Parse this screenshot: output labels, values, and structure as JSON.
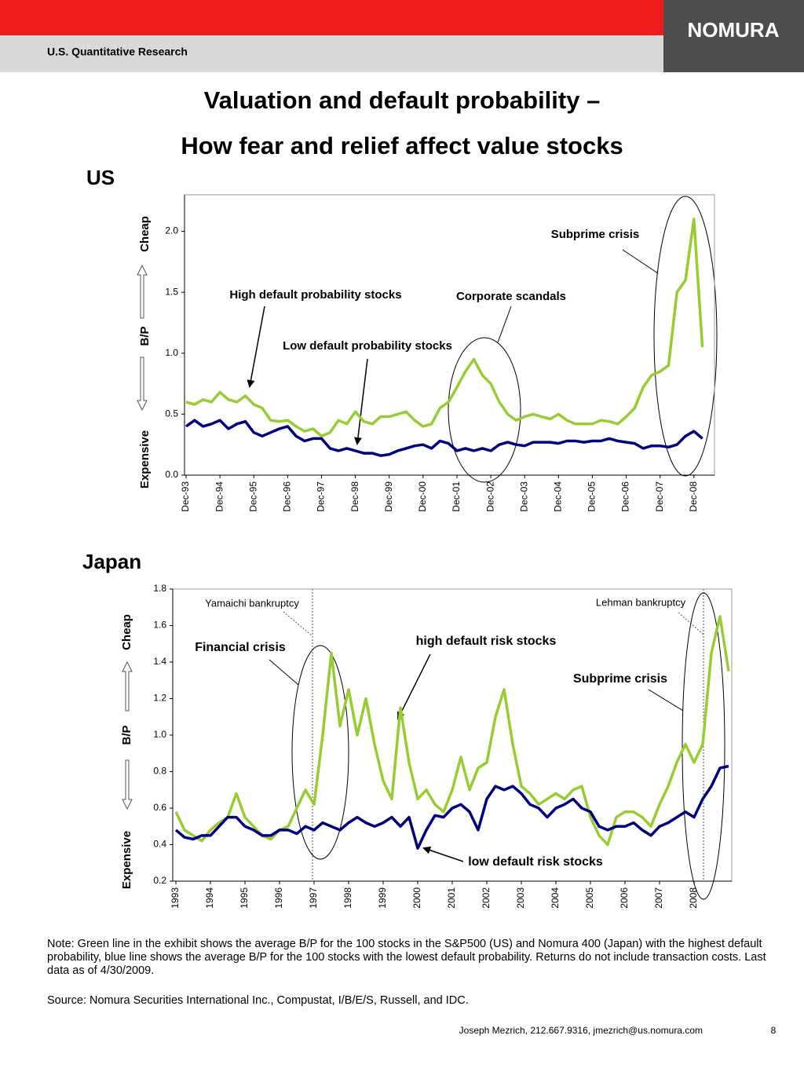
{
  "header": {
    "section": "U.S. Quantitative Research",
    "logo": "NOMURA"
  },
  "title": [
    "Valuation and default probability –",
    "How fear and relief affect value stocks"
  ],
  "chart_data": [
    {
      "type": "line",
      "title": "US",
      "y_axis_labels": [
        "Expensive",
        "B/P",
        "Cheap"
      ],
      "annotations": [
        "Subprime crisis",
        "High default probability stocks",
        "Corporate scandals",
        "Low default probability stocks"
      ],
      "categories": [
        "Dec-93",
        null,
        null,
        null,
        "Dec-94",
        null,
        null,
        null,
        "Dec-95",
        null,
        null,
        null,
        "Dec-96",
        null,
        null,
        null,
        "Dec-97",
        null,
        null,
        null,
        "Dec-98",
        null,
        null,
        null,
        "Dec-99",
        null,
        null,
        null,
        "Dec-00",
        null,
        null,
        null,
        "Dec-01",
        null,
        null,
        null,
        "Dec-02",
        null,
        null,
        null,
        "Dec-03",
        null,
        null,
        null,
        "Dec-04",
        null,
        null,
        null,
        "Dec-05",
        null,
        null,
        null,
        "Dec-06",
        null,
        null,
        null,
        "Dec-07",
        null,
        null,
        null,
        "Dec-08",
        null
      ],
      "series": [
        {
          "color": "#99cc33",
          "values": [
            0.6,
            0.58,
            0.62,
            0.6,
            0.68,
            0.62,
            0.6,
            0.65,
            0.58,
            0.55,
            0.45,
            0.44,
            0.45,
            0.4,
            0.36,
            0.38,
            0.32,
            0.35,
            0.45,
            0.42,
            0.52,
            0.44,
            0.42,
            0.48,
            0.48,
            0.5,
            0.52,
            0.45,
            0.4,
            0.42,
            0.55,
            0.6,
            0.72,
            0.85,
            0.95,
            0.82,
            0.75,
            0.6,
            0.5,
            0.45,
            0.48,
            0.5,
            0.48,
            0.46,
            0.5,
            0.45,
            0.42,
            0.42,
            0.42,
            0.45,
            0.44,
            0.42,
            0.48,
            0.55,
            0.72,
            0.82,
            0.85,
            0.9,
            1.5,
            1.6,
            2.1,
            1.05
          ]
        },
        {
          "color": "#000080",
          "values": [
            0.4,
            0.45,
            0.4,
            0.42,
            0.45,
            0.38,
            0.42,
            0.44,
            0.35,
            0.32,
            0.35,
            0.38,
            0.4,
            0.32,
            0.28,
            0.3,
            0.3,
            0.22,
            0.2,
            0.22,
            0.2,
            0.18,
            0.18,
            0.16,
            0.17,
            0.2,
            0.22,
            0.24,
            0.25,
            0.22,
            0.28,
            0.26,
            0.2,
            0.22,
            0.2,
            0.22,
            0.2,
            0.25,
            0.27,
            0.25,
            0.24,
            0.27,
            0.27,
            0.27,
            0.26,
            0.28,
            0.28,
            0.27,
            0.28,
            0.28,
            0.3,
            0.28,
            0.27,
            0.26,
            0.22,
            0.24,
            0.24,
            0.23,
            0.25,
            0.32,
            0.36,
            0.3
          ]
        }
      ],
      "ylim": [
        0,
        2.3
      ],
      "yticks": [
        {
          "value": 0,
          "label": "0.0"
        },
        0.5,
        {
          "value": 1,
          "label": "1.0"
        },
        1.5,
        {
          "value": 2,
          "label": "2.0"
        }
      ],
      "grid": false
    },
    {
      "type": "line",
      "title": "Japan",
      "y_axis_labels": [
        "Expensive",
        "B/P",
        "Cheap"
      ],
      "annotations": [
        "Yamaichi bankruptcy",
        "Lehman bankruptcy",
        "Financial crisis",
        "high default risk stocks",
        "Subprime crisis",
        "low default risk stocks"
      ],
      "categories": [
        "1993",
        null,
        null,
        null,
        "1994",
        null,
        null,
        null,
        "1995",
        null,
        null,
        null,
        "1996",
        null,
        null,
        null,
        "1997",
        null,
        null,
        null,
        "1998",
        null,
        null,
        null,
        "1999",
        null,
        null,
        null,
        "2000",
        null,
        null,
        null,
        "2001",
        null,
        null,
        null,
        "2002",
        null,
        null,
        null,
        "2003",
        null,
        null,
        null,
        "2004",
        null,
        null,
        null,
        "2005",
        null,
        null,
        null,
        "2006",
        null,
        null,
        null,
        "2007",
        null,
        null,
        null,
        "2008",
        null,
        null,
        null,
        null
      ],
      "series": [
        {
          "color": "#99cc33",
          "values": [
            0.58,
            0.48,
            0.45,
            0.42,
            0.48,
            0.52,
            0.55,
            0.68,
            0.55,
            0.5,
            0.45,
            0.43,
            0.48,
            0.5,
            0.6,
            0.7,
            0.62,
            1.0,
            1.45,
            1.05,
            1.25,
            1.0,
            1.2,
            0.95,
            0.75,
            0.65,
            1.15,
            0.85,
            0.65,
            0.7,
            0.62,
            0.58,
            0.7,
            0.88,
            0.7,
            0.82,
            0.85,
            1.1,
            1.25,
            0.95,
            0.72,
            0.68,
            0.62,
            0.65,
            0.68,
            0.65,
            0.7,
            0.72,
            0.55,
            0.45,
            0.4,
            0.55,
            0.58,
            0.58,
            0.55,
            0.5,
            0.62,
            0.72,
            0.85,
            0.95,
            0.85,
            0.95,
            1.45,
            1.65,
            1.35
          ]
        },
        {
          "color": "#000080",
          "values": [
            0.48,
            0.44,
            0.43,
            0.45,
            0.45,
            0.5,
            0.55,
            0.55,
            0.5,
            0.48,
            0.45,
            0.45,
            0.48,
            0.48,
            0.46,
            0.5,
            0.48,
            0.52,
            0.5,
            0.48,
            0.52,
            0.55,
            0.52,
            0.5,
            0.52,
            0.55,
            0.5,
            0.55,
            0.38,
            0.48,
            0.56,
            0.55,
            0.6,
            0.62,
            0.58,
            0.48,
            0.65,
            0.72,
            0.7,
            0.72,
            0.68,
            0.62,
            0.6,
            0.55,
            0.6,
            0.62,
            0.65,
            0.6,
            0.58,
            0.5,
            0.48,
            0.5,
            0.5,
            0.52,
            0.48,
            0.45,
            0.5,
            0.52,
            0.55,
            0.58,
            0.55,
            0.65,
            0.72,
            0.82,
            0.83
          ]
        }
      ],
      "ylim": [
        0.2,
        1.8
      ],
      "yticks": [
        0.2,
        0.4,
        0.6,
        0.8,
        {
          "value": 1,
          "label": "1.0"
        },
        1.2,
        1.4,
        1.6,
        1.8
      ],
      "grid": false
    }
  ],
  "notes": [
    "Note: Green line in the exhibit shows the average B/P for the 100 stocks in the S&P500 (US) and Nomura 400 (Japan) with the highest default probability, blue line shows the average B/P for the 100 stocks with the lowest default probability. Returns do not include transaction costs. Last data as of 4/30/2009.",
    "Source: Nomura Securities International Inc., Compustat, I/B/E/S, Russell, and IDC."
  ],
  "footer": {
    "contact": "Joseph Mezrich, 212.667.9316, jmezrich@us.nomura.com",
    "page": "8"
  }
}
